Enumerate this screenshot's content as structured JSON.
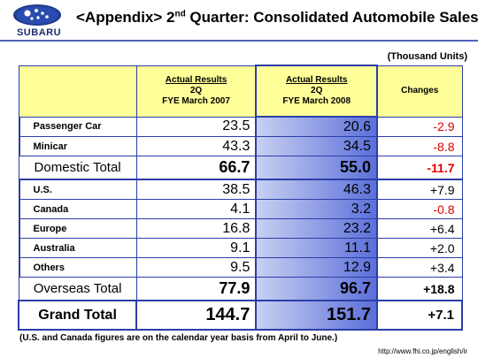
{
  "header": {
    "brand": "SUBARU",
    "title_prefix": "<Appendix> 2",
    "title_sup": "nd",
    "title_suffix": " Quarter: Consolidated Automobile Sales"
  },
  "units": "(Thousand Units)",
  "columns": {
    "col1": [
      "Actual Results",
      "2Q",
      "FYE March 2007"
    ],
    "col2": [
      "Actual Results",
      "2Q",
      "FYE March 2008"
    ],
    "col3": "Changes"
  },
  "domestic": [
    {
      "label": "Passenger Car",
      "v2007": "23.5",
      "v2008": "20.6",
      "change": "-2.9"
    },
    {
      "label": "Minicar",
      "v2007": "43.3",
      "v2008": "34.5",
      "change": "-8.8"
    }
  ],
  "domestic_total": {
    "label": "Domestic Total",
    "v2007": "66.7",
    "v2008": "55.0",
    "change": "-11.7"
  },
  "overseas": [
    {
      "label": "U.S.",
      "v2007": "38.5",
      "v2008": "46.3",
      "change": "+7.9"
    },
    {
      "label": "Canada",
      "v2007": "4.1",
      "v2008": "3.2",
      "change": "-0.8"
    },
    {
      "label": "Europe",
      "v2007": "16.8",
      "v2008": "23.2",
      "change": "+6.4"
    },
    {
      "label": "Australia",
      "v2007": "9.1",
      "v2008": "11.1",
      "change": "+2.0"
    },
    {
      "label": "Others",
      "v2007": "9.5",
      "v2008": "12.9",
      "change": "+3.4"
    }
  ],
  "overseas_total": {
    "label": "Overseas Total",
    "v2007": "77.9",
    "v2008": "96.7",
    "change": "+18.8"
  },
  "grand_total": {
    "label": "Grand Total",
    "v2007": "144.7",
    "v2008": "151.7",
    "change": "+7.1"
  },
  "footnote": "(U.S. and Canada figures are on the calendar year basis from April to June.)",
  "url": "http://www.fhi.co.jp/english/ir",
  "colors": {
    "accent": "#2b3ea8",
    "negative": "#e00000",
    "header_bg": "#ffff99",
    "highlight": "#5b6fd9"
  }
}
